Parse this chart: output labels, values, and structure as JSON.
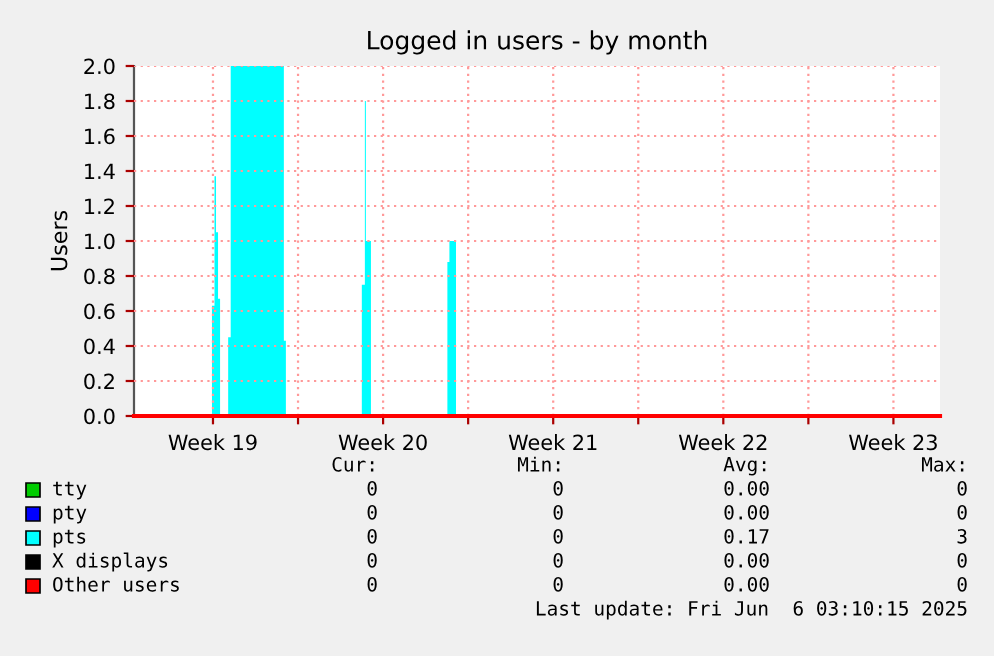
{
  "chart_data": {
    "type": "area",
    "title": "Logged in users - by month",
    "ylabel": "Users",
    "x": [
      "2025-05-05T06:00",
      "2025-05-08T11:00",
      "2025-05-08T13:30",
      "2025-05-08T15:00",
      "2025-05-08T17:00",
      "2025-05-08T19:00",
      "2025-05-09T03:00",
      "2025-05-09T05:30",
      "2025-05-11T10:00",
      "2025-05-11T12:00",
      "2025-05-14T15:00",
      "2025-05-14T18:00",
      "2025-05-14T19:00",
      "2025-05-15T00:00",
      "2025-05-18T03:30",
      "2025-05-18T05:30",
      "2025-05-18T12:00",
      "2025-06-07T10:00"
    ],
    "series": [
      {
        "name": "tty",
        "type": "line",
        "color": "#00cc00",
        "values": [
          null,
          null,
          null,
          null,
          null,
          null,
          null,
          null,
          null,
          null,
          null,
          null,
          null,
          null,
          null,
          null,
          null,
          null
        ]
      },
      {
        "name": "pty",
        "type": "line",
        "color": "#0000ff",
        "values": [
          null,
          null,
          null,
          null,
          null,
          null,
          null,
          null,
          null,
          null,
          null,
          null,
          null,
          null,
          null,
          null,
          null,
          null
        ]
      },
      {
        "name": "pts",
        "color": "#00ffff",
        "values": [
          0,
          0.63,
          1.37,
          1.05,
          0.67,
          0,
          0.45,
          2.0,
          0.43,
          0,
          0.75,
          1.8,
          1.0,
          0,
          0.88,
          1.0,
          0,
          0
        ]
      },
      {
        "name": "X displays",
        "type": "line",
        "color": "#000000",
        "values": [
          null,
          null,
          null,
          null,
          null,
          null,
          null,
          null,
          null,
          null,
          null,
          null,
          null,
          null,
          null,
          null,
          null,
          null
        ]
      },
      {
        "name": "Other users",
        "type": "line",
        "color": "#ff0000",
        "values": [
          0,
          0,
          0,
          0,
          0,
          0,
          0,
          0,
          0,
          0,
          0,
          0,
          0,
          0,
          0,
          0,
          0,
          0
        ]
      }
    ],
    "xlim": [
      "2025-05-05T06:00",
      "2025-06-07T10:00"
    ],
    "ylim": [
      0,
      2.0
    ],
    "xticks": [
      {
        "value": "2025-05-08T12:00",
        "label": "Week 19"
      },
      {
        "value": "2025-05-12",
        "label": null
      },
      {
        "value": "2025-05-15T12:00",
        "label": "Week 20"
      },
      {
        "value": "2025-05-19",
        "label": null
      },
      {
        "value": "2025-05-22T12:00",
        "label": "Week 21"
      },
      {
        "value": "2025-05-26",
        "label": null
      },
      {
        "value": "2025-05-29T12:00",
        "label": "Week 22"
      },
      {
        "value": "2025-06-02",
        "label": null
      },
      {
        "value": "2025-06-05T12:00",
        "label": "Week 23"
      }
    ],
    "yticks": [
      {
        "value": 0,
        "label": "0.0"
      },
      {
        "value": 0.2,
        "label": "0.2"
      },
      {
        "value": 0.4,
        "label": "0.4"
      },
      {
        "value": 0.6,
        "label": "0.6"
      },
      {
        "value": 0.8,
        "label": "0.8"
      },
      {
        "value": 1.0,
        "label": "1.0"
      },
      {
        "value": 1.2,
        "label": "1.2"
      },
      {
        "value": 1.4,
        "label": "1.4"
      },
      {
        "value": 1.6,
        "label": "1.6"
      },
      {
        "value": 1.8,
        "label": "1.8"
      },
      {
        "value": 2.0,
        "label": "2.0"
      }
    ],
    "grid": true,
    "legend": "bottom",
    "annotations": [
      "Cur:",
      "Min:",
      "Avg:",
      "Max:",
      "0",
      "0",
      "0.00",
      "0",
      "0",
      "0",
      "0.00",
      "0",
      "0",
      "0",
      "0.17",
      "3",
      "0",
      "0",
      "0.00",
      "0",
      "0",
      "0",
      "0.00",
      "0",
      "Last update: Fri Jun  6 03:10:15 2025"
    ]
  }
}
